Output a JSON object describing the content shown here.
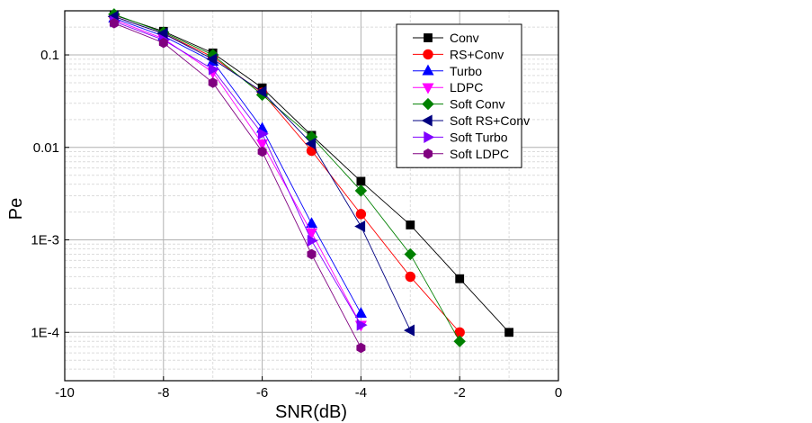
{
  "chart_data": {
    "type": "line",
    "title": "",
    "xlabel": "SNR(dB)",
    "ylabel": "Pe",
    "xlim": [
      -10,
      0
    ],
    "ylim": [
      3e-05,
      0.3
    ],
    "yscale": "log",
    "grid": true,
    "legend_position": "top-right",
    "x_ticks": [
      "-10",
      "-8",
      "-6",
      "-4",
      "-2",
      "0"
    ],
    "y_ticks": [
      "1E-4",
      "1E-3",
      "0.01",
      "0.1"
    ],
    "series": [
      {
        "name": "Conv",
        "color": "#000000",
        "marker": "square",
        "x": [
          -9,
          -8,
          -7,
          -6,
          -5,
          -4,
          -3,
          -2,
          -1
        ],
        "y": [
          0.27,
          0.18,
          0.105,
          0.044,
          0.0135,
          0.0043,
          0.00145,
          0.00038,
          0.0001
        ]
      },
      {
        "name": "RS+Conv",
        "color": "#ff0000",
        "marker": "circle",
        "x": [
          -9,
          -8,
          -7,
          -6,
          -5,
          -4,
          -3,
          -2
        ],
        "y": [
          0.26,
          0.17,
          0.095,
          0.039,
          0.0092,
          0.0019,
          0.0004,
          0.0001
        ]
      },
      {
        "name": "Turbo",
        "color": "#0000ff",
        "marker": "triangle-up",
        "x": [
          -9,
          -8,
          -7,
          -6,
          -5,
          -4
        ],
        "y": [
          0.25,
          0.16,
          0.085,
          0.016,
          0.0015,
          0.00016
        ]
      },
      {
        "name": "LDPC",
        "color": "#ff00ff",
        "marker": "triangle-down",
        "x": [
          -9,
          -8,
          -7,
          -6,
          -5,
          -4
        ],
        "y": [
          0.24,
          0.15,
          0.065,
          0.011,
          0.0012,
          0.00012
        ]
      },
      {
        "name": "Soft Conv",
        "color": "#008000",
        "marker": "diamond",
        "x": [
          -9,
          -8,
          -7,
          -6,
          -5,
          -4,
          -3,
          -2
        ],
        "y": [
          0.275,
          0.175,
          0.1,
          0.037,
          0.013,
          0.0034,
          0.0007,
          8e-05
        ]
      },
      {
        "name": "Soft RS+Conv",
        "color": "#000080",
        "marker": "triangle-left",
        "x": [
          -9,
          -8,
          -7,
          -6,
          -5,
          -4,
          -3
        ],
        "y": [
          0.26,
          0.17,
          0.09,
          0.04,
          0.011,
          0.0014,
          0.000105
        ]
      },
      {
        "name": "Soft Turbo",
        "color": "#8000ff",
        "marker": "triangle-right",
        "x": [
          -9,
          -8,
          -7,
          -6,
          -5,
          -4
        ],
        "y": [
          0.23,
          0.145,
          0.07,
          0.014,
          0.00098,
          0.00012
        ]
      },
      {
        "name": "Soft LDPC",
        "color": "#800080",
        "marker": "hexagon",
        "x": [
          -9,
          -8,
          -7,
          -6,
          -5,
          -4
        ],
        "y": [
          0.22,
          0.135,
          0.05,
          0.009,
          0.0007,
          6.8e-05
        ]
      }
    ]
  }
}
